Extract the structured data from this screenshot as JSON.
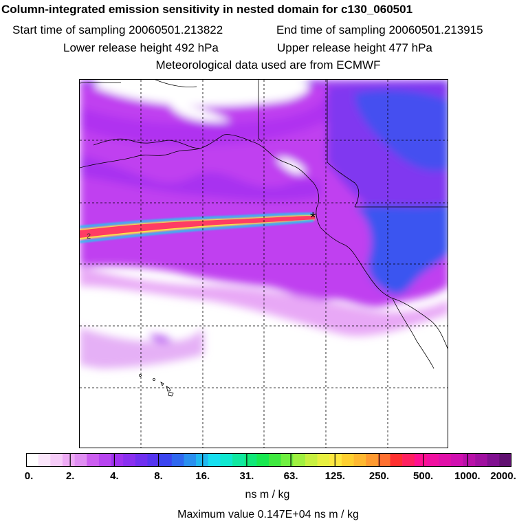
{
  "header": {
    "title": "Column-integrated emission sensitivity in nested domain for c130_060501",
    "start_time": "Start time of sampling 20060501.213822",
    "end_time": "End time of sampling 20060501.213915",
    "lower_height": "Lower release height  492 hPa",
    "upper_height": "Upper release height  477 hPa",
    "met_data": "Meteorological data used are from ECMWF"
  },
  "map": {
    "release_marker": "*",
    "contour_label": "2"
  },
  "colorbar": {
    "ticks": [
      "0.",
      "2.",
      "4.",
      "8.",
      "16.",
      "31.",
      "63.",
      "125.",
      "250.",
      "500.",
      "1000.",
      "2000."
    ],
    "colors": [
      "#ffffff",
      "#fbe6fb",
      "#f6ccf8",
      "#eeaaf5",
      "#e08ef2",
      "#cc5ef0",
      "#b845f0",
      "#a033f0",
      "#8a30f0",
      "#7030f0",
      "#5535f0",
      "#3b45f0",
      "#2f68ef",
      "#2a90ef",
      "#20b8f0",
      "#18dff0",
      "#10e8d0",
      "#10e8a0",
      "#10e878",
      "#18e850",
      "#40e840",
      "#70f040",
      "#a0f040",
      "#c8f040",
      "#e8f040",
      "#ffe840",
      "#ffd030",
      "#ffb830",
      "#ff9a30",
      "#ff7030",
      "#ff3030",
      "#ff2060",
      "#ff1090",
      "#f010a0",
      "#e010a8",
      "#d010b0",
      "#b810a8",
      "#a010a0",
      "#801090",
      "#601070"
    ],
    "units": "ns m / kg",
    "max_value": "Maximum value  0.147E+04 ns m / kg"
  }
}
